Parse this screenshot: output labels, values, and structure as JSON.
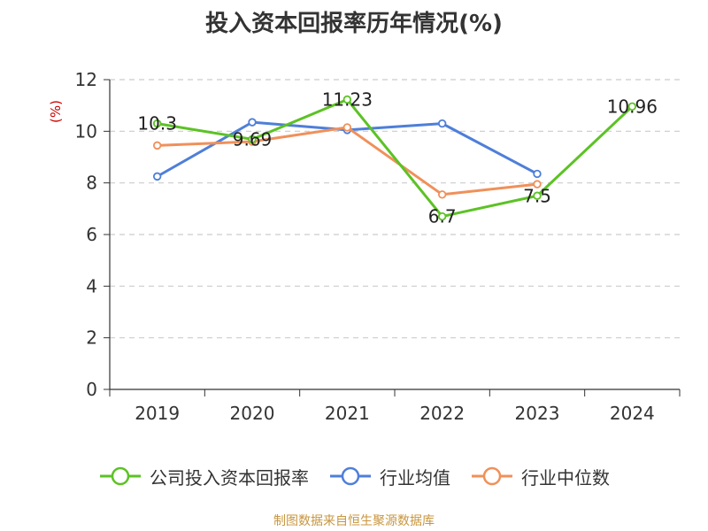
{
  "chart_data": {
    "type": "line",
    "title": "投入资本回报率历年情况(%)",
    "ylabel": "(%)",
    "xlabel": "",
    "categories": [
      "2019",
      "2020",
      "2021",
      "2022",
      "2023",
      "2024"
    ],
    "ylim": [
      0,
      12
    ],
    "yticks": [
      0,
      2,
      4,
      6,
      8,
      10,
      12
    ],
    "grid": true,
    "legend_position": "bottom",
    "series": [
      {
        "name": "公司投入资本回报率",
        "color": "#5cc225",
        "values": [
          10.3,
          9.69,
          11.23,
          6.7,
          7.5,
          10.96
        ],
        "labels": [
          "10.3",
          "9.69",
          "11.23",
          "6.7",
          "7.5",
          "10.96"
        ]
      },
      {
        "name": "行业均值",
        "color": "#4e7fd9",
        "values": [
          8.25,
          10.35,
          10.05,
          10.3,
          8.35,
          null
        ]
      },
      {
        "name": "行业中位数",
        "color": "#f0905a",
        "values": [
          9.45,
          9.6,
          10.15,
          7.55,
          7.95,
          null
        ]
      }
    ]
  },
  "footer": {
    "source": "制图数据来自恒生聚源数据库"
  },
  "colors": {
    "unit_label": "#cc0000",
    "grid": "#cccccc",
    "axis": "#333333"
  }
}
